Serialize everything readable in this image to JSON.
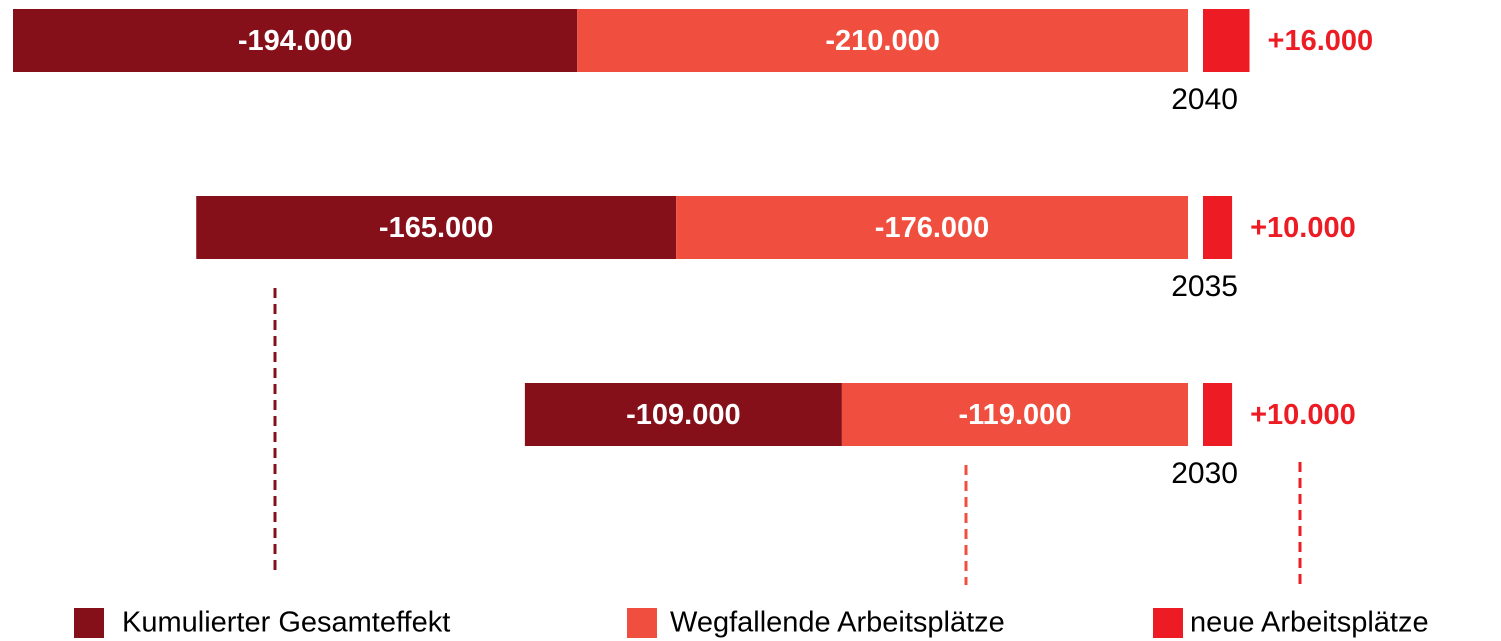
{
  "chart_data": {
    "type": "bar",
    "orientation": "horizontal",
    "categories": [
      "2040",
      "2035",
      "2030"
    ],
    "series": [
      {
        "name": "Kumulierter Gesamteffekt",
        "color": "#85101a",
        "values": [
          -194000,
          -165000,
          -109000
        ],
        "value_labels": [
          "-194.000",
          "-165.000",
          "-109.000"
        ]
      },
      {
        "name": "Wegfallende Arbeitsplätze",
        "color": "#f04e3e",
        "values": [
          -210000,
          -176000,
          -119000
        ],
        "value_labels": [
          "-210.000",
          "-176.000",
          "-119.000"
        ]
      },
      {
        "name": "neue Arbeitsplätze",
        "color": "#ed1c24",
        "values": [
          16000,
          10000,
          10000
        ],
        "value_labels": [
          "+16.000",
          "+10.000",
          "+10.000"
        ]
      }
    ]
  }
}
